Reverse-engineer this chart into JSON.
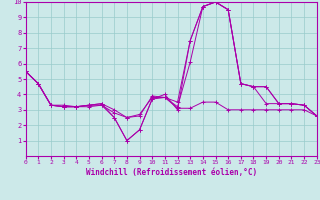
{
  "xlabel": "Windchill (Refroidissement éolien,°C)",
  "xlim": [
    0,
    23
  ],
  "ylim": [
    0,
    10
  ],
  "xticks": [
    0,
    1,
    2,
    3,
    4,
    5,
    6,
    7,
    8,
    9,
    10,
    11,
    12,
    13,
    14,
    15,
    16,
    17,
    18,
    19,
    20,
    21,
    22,
    23
  ],
  "yticks": [
    1,
    2,
    3,
    4,
    5,
    6,
    7,
    8,
    9,
    10
  ],
  "background_color": "#cce9e9",
  "line_color": "#aa00aa",
  "grid_color": "#99cccc",
  "series": [
    {
      "y": [
        5.5,
        4.7,
        3.3,
        3.3,
        3.2,
        3.3,
        3.3,
        2.5,
        1.0,
        1.7,
        3.7,
        4.0,
        3.0,
        7.5,
        9.7,
        10.0,
        9.5,
        4.7,
        4.5,
        4.5,
        3.4,
        3.4,
        3.3,
        2.6
      ]
    },
    {
      "y": [
        5.5,
        4.7,
        3.3,
        3.2,
        3.2,
        3.2,
        3.3,
        2.8,
        2.5,
        2.7,
        3.8,
        3.8,
        3.1,
        3.1,
        3.5,
        3.5,
        3.0,
        3.0,
        3.0,
        3.0,
        3.0,
        3.0,
        3.0,
        2.6
      ]
    },
    {
      "y": [
        5.5,
        4.7,
        3.3,
        3.2,
        3.2,
        3.3,
        3.4,
        3.0,
        2.5,
        2.6,
        3.9,
        3.8,
        3.2,
        6.1,
        9.7,
        10.0,
        9.5,
        4.7,
        4.5,
        4.5,
        3.4,
        3.4,
        3.3,
        2.6
      ]
    },
    {
      "y": [
        5.5,
        4.7,
        3.3,
        3.2,
        3.2,
        3.3,
        3.4,
        2.5,
        1.0,
        1.7,
        3.7,
        3.8,
        3.5,
        7.5,
        9.7,
        10.0,
        9.5,
        4.7,
        4.5,
        3.4,
        3.4,
        3.4,
        3.3,
        2.6
      ]
    }
  ]
}
